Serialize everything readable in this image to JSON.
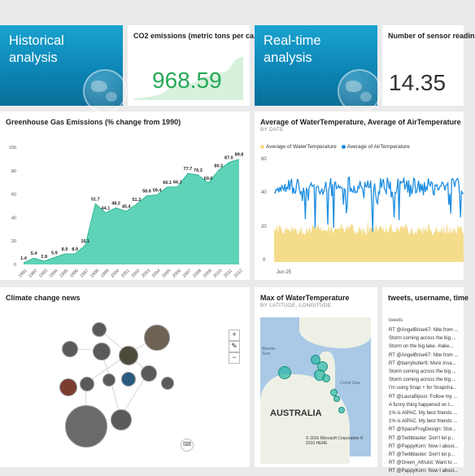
{
  "tiles": {
    "historical": {
      "title": "Historical analysis"
    },
    "co2": {
      "title": "CO2 emissions (metric tons per ca...",
      "value": "968.59"
    },
    "realtime": {
      "title": "Real-time analysis"
    },
    "sensors": {
      "title": "Number of sensor readin",
      "value": "14.35"
    },
    "greenhouse": {
      "title": "Greenhouse Gas Emissions (% change from 1990)"
    },
    "temperature": {
      "title": "Average of WaterTemperature, Average of AirTemperature",
      "subtitle": "BY DATE",
      "legend": [
        "Average of WaterTemperature",
        "Average of AirTemperature"
      ],
      "x_label": "Jun 25",
      "y_ticks": [
        "60",
        "40",
        "20",
        "0"
      ]
    },
    "news": {
      "title": "Climate change news",
      "zoom_in": "+",
      "zoom_out": "−"
    },
    "map": {
      "title": "Max of WaterTemperature",
      "subtitle": "BY LATITUDE, LONGITUDE",
      "labels": {
        "banda": "Banda Sea",
        "coral": "Coral Sea",
        "australia": "AUSTRALIA",
        "copyright": "© 2016 Microsoft Corporation © 2016 HERE"
      }
    },
    "tweets": {
      "title": "tweets, username, time",
      "header": "tweets",
      "items": [
        "RT @AngelBrise67: Nite from ...",
        "Storm coming across the big ...",
        "Storm on the big lake. #lake...",
        "RT @AngelBrise67: Nite from ...",
        "RT @barrybutler9: More Insa...",
        "Storm coming across the big ...",
        "Storm coming across the big ...",
        "I'm using Snap + for Snapcha...",
        "RT @LauraBijoux: Follow my ...",
        "A funny thing happened on t...",
        "1% is AIPAC. My best friends ...",
        "1% is AIPAC. My best friends ...",
        "RT @SpaceFrogDesign: Stor...",
        "RT @Twittblaster: Don't let p...",
        "RT @PappyKorn: Now I absol...",
        "RT @Twittblaster: Don't let p...",
        "RT @Green_Altruist: Want to ...",
        "RT @PappyKorn: Now I absol..."
      ]
    }
  },
  "chart_data": {
    "type": "area",
    "title": "Greenhouse Gas Emissions (% change from 1990)",
    "categories": [
      "1991",
      "1992",
      "1993",
      "1994",
      "1995",
      "1996",
      "1997",
      "1998",
      "1999",
      "2000",
      "2001",
      "2002",
      "2003",
      "2004",
      "2005",
      "2006",
      "2007",
      "2008",
      "2009",
      "2010",
      "2011",
      "2012"
    ],
    "values": [
      1.4,
      5.4,
      2.8,
      5.9,
      8.9,
      8.9,
      16.1,
      51.7,
      44.1,
      48.2,
      45.4,
      51.3,
      58.6,
      59.4,
      66.1,
      66.2,
      77.7,
      76.3,
      69.6,
      80.3,
      87.0,
      89.8
    ],
    "y_ticks": [
      0,
      20,
      40,
      60,
      80,
      100
    ],
    "ylim": [
      0,
      100
    ],
    "color": "#5fd3b8"
  }
}
